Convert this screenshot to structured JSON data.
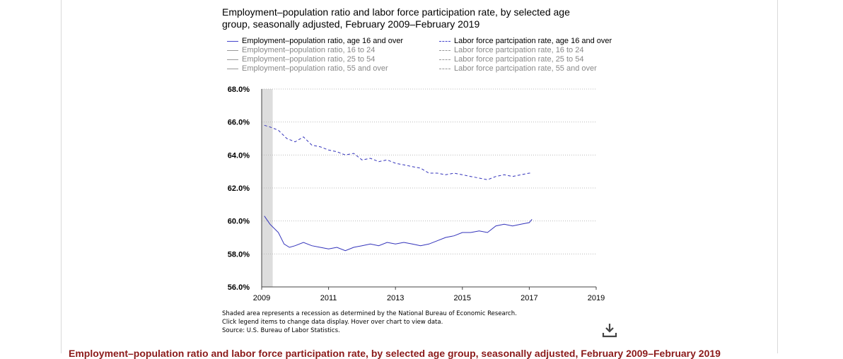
{
  "chart_data": {
    "type": "line",
    "title": "Employment–population ratio and labor force participation rate, by selected age group, seasonally adjusted, February 2009–February 2019",
    "legend": [
      {
        "label": "Employment–population ratio, age 16 and over",
        "style": "solid",
        "active": true
      },
      {
        "label": "Employment–population ratio, 16 to 24",
        "style": "solid",
        "active": false
      },
      {
        "label": "Employment–population ratio, 25 to 54",
        "style": "solid",
        "active": false
      },
      {
        "label": "Employment–population ratio, 55 and over",
        "style": "solid",
        "active": false
      },
      {
        "label": "Labor force partcipation rate, age 16 and over",
        "style": "dashed",
        "active": true
      },
      {
        "label": "Labor force partcipation rate, 16 to 24",
        "style": "dashed",
        "active": false
      },
      {
        "label": "Labor force partcipation rate, 25 to 54",
        "style": "dashed",
        "active": false
      },
      {
        "label": "Labor force partcipation rate, 55 and over",
        "style": "dashed",
        "active": false
      }
    ],
    "xlim": [
      2009,
      2019
    ],
    "ylim": [
      56,
      68
    ],
    "x_ticks": [
      "2009",
      "2011",
      "2013",
      "2015",
      "2017",
      "2019"
    ],
    "y_ticks": [
      "56.0%",
      "58.0%",
      "60.0%",
      "62.0%",
      "64.0%",
      "66.0%",
      "68.0%"
    ],
    "grid": "horizontal dotted",
    "recession_shading": {
      "start": 2009.0,
      "end": 2009.33,
      "color": "#dddddd"
    },
    "series": [
      {
        "name": "Employment–population ratio, age 16 and over",
        "color": "#3333bb",
        "dash": false,
        "x": [
          2009.08,
          2009.25,
          2009.5,
          2009.67,
          2009.83,
          2010.0,
          2010.25,
          2010.5,
          2010.75,
          2011.0,
          2011.25,
          2011.5,
          2011.75,
          2012.0,
          2012.25,
          2012.5,
          2012.75,
          2013.0,
          2013.25,
          2013.5,
          2013.75,
          2014.0,
          2014.25,
          2014.5,
          2014.75,
          2015.0,
          2015.25,
          2015.5,
          2015.75,
          2016.0,
          2016.25,
          2016.5,
          2016.75,
          2017.0,
          2017.08
        ],
        "y": [
          60.3,
          59.8,
          59.3,
          58.6,
          58.4,
          58.5,
          58.7,
          58.5,
          58.4,
          58.3,
          58.4,
          58.2,
          58.4,
          58.5,
          58.6,
          58.5,
          58.7,
          58.6,
          58.7,
          58.6,
          58.5,
          58.6,
          58.8,
          59.0,
          59.1,
          59.3,
          59.3,
          59.4,
          59.3,
          59.7,
          59.8,
          59.7,
          59.8,
          59.9,
          60.1
        ]
      },
      {
        "name": "Labor force partcipation rate, age 16 and over",
        "color": "#3333bb",
        "dash": true,
        "x": [
          2009.08,
          2009.25,
          2009.5,
          2009.75,
          2010.0,
          2010.25,
          2010.5,
          2010.75,
          2011.0,
          2011.25,
          2011.5,
          2011.75,
          2012.0,
          2012.25,
          2012.5,
          2012.75,
          2013.0,
          2013.25,
          2013.5,
          2013.75,
          2014.0,
          2014.25,
          2014.5,
          2014.75,
          2015.0,
          2015.25,
          2015.5,
          2015.75,
          2016.0,
          2016.25,
          2016.5,
          2016.75,
          2017.0,
          2017.08
        ],
        "y": [
          65.8,
          65.7,
          65.5,
          65.0,
          64.8,
          65.1,
          64.6,
          64.5,
          64.3,
          64.2,
          64.0,
          64.1,
          63.7,
          63.8,
          63.6,
          63.7,
          63.5,
          63.4,
          63.3,
          63.2,
          62.9,
          62.9,
          62.8,
          62.9,
          62.8,
          62.7,
          62.6,
          62.5,
          62.7,
          62.8,
          62.7,
          62.8,
          62.9,
          62.9
        ]
      }
    ],
    "notes": [
      "Shaded area represents a recession as determined by the National Bureau of Economic Research.",
      "Click legend items to change data display. Hover over chart to view data.",
      "Source: U.S. Bureau of Labor Statistics."
    ]
  },
  "bottom_title": "Employment–population ratio and labor force participation rate, by selected age group, seasonally adjusted, February 2009–February 2019",
  "icons": {
    "download": "download-icon"
  }
}
